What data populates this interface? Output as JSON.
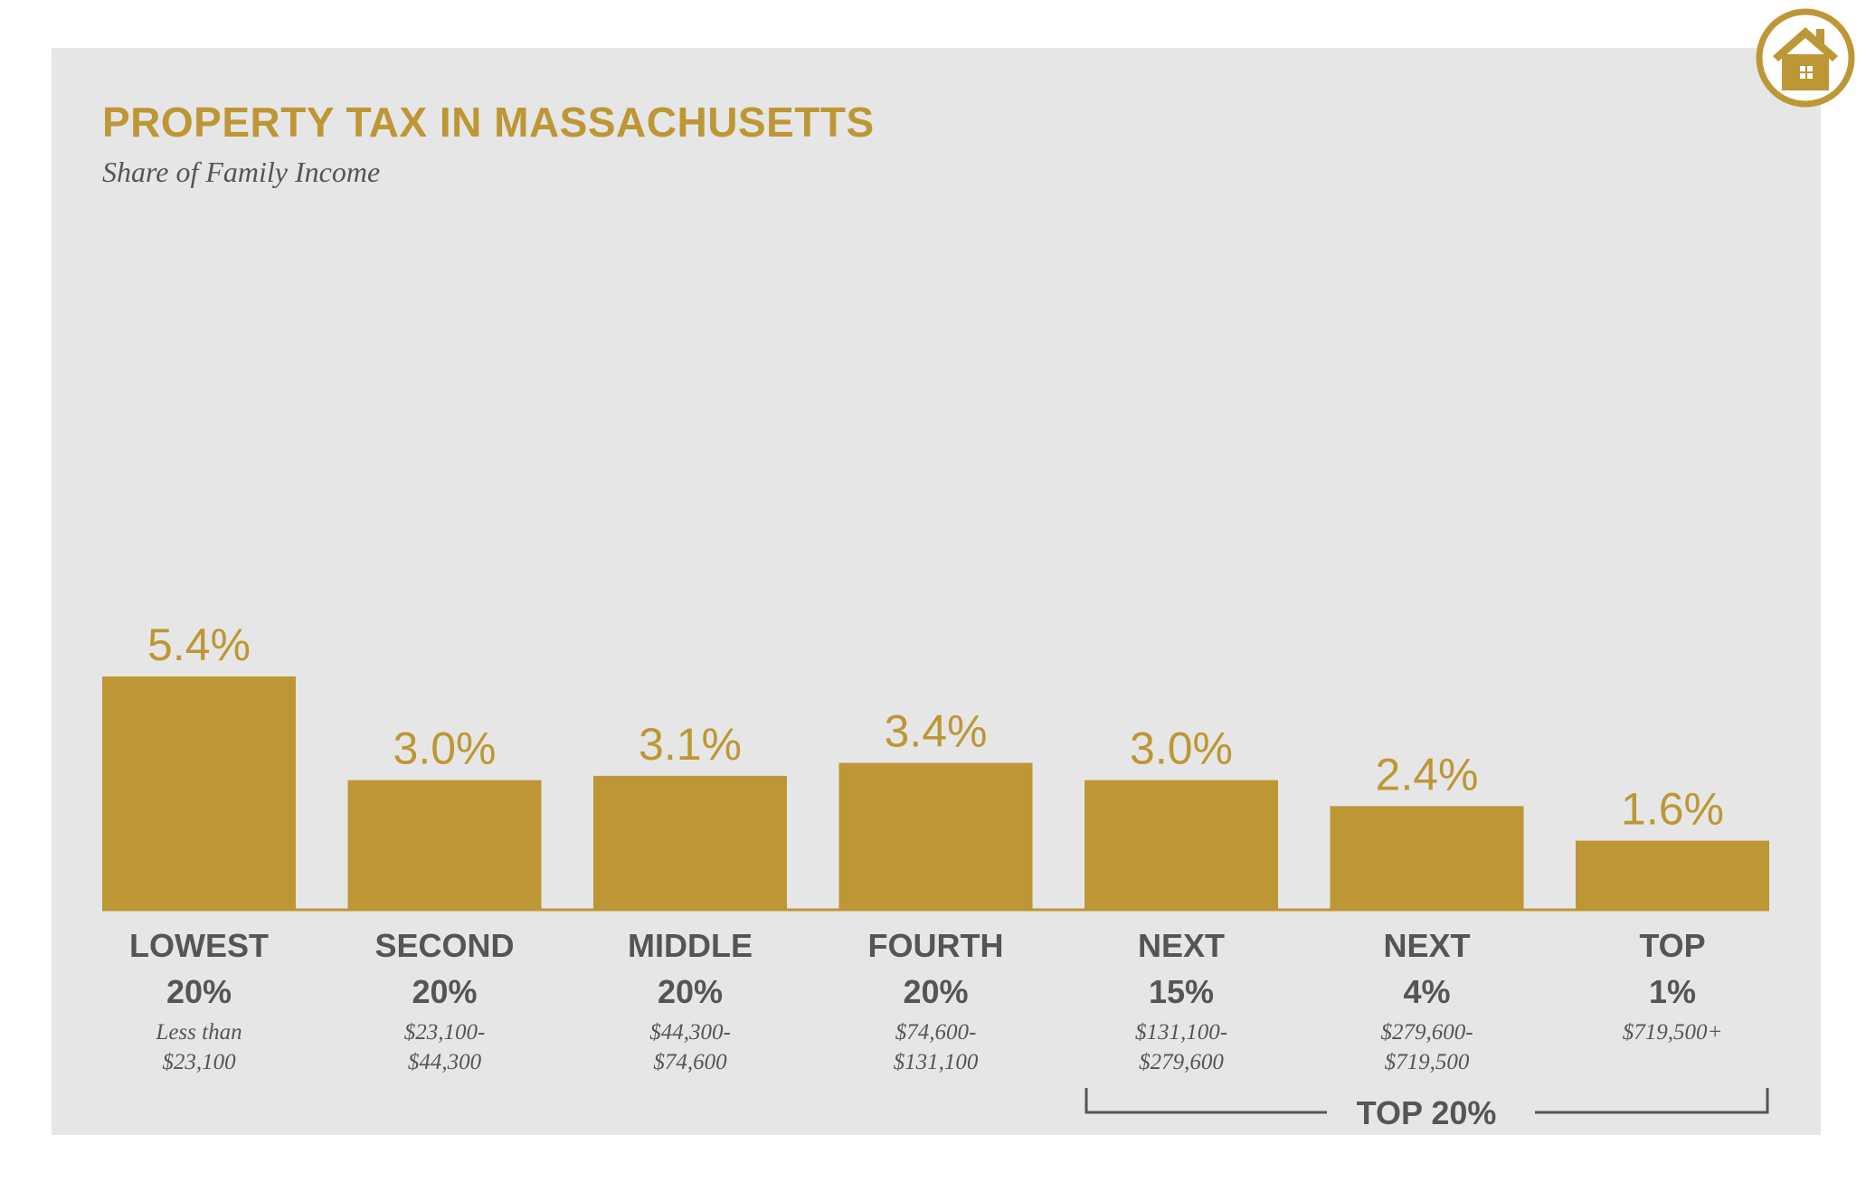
{
  "chart_data": {
    "type": "bar",
    "title": "PROPERTY TAX IN MASSACHUSETTS",
    "subtitle": "Share of Family Income",
    "categories": [
      {
        "group": "LOWEST",
        "share": "20%",
        "range": [
          "Less than",
          "$23,100"
        ]
      },
      {
        "group": "SECOND",
        "share": "20%",
        "range": [
          "$23,100-",
          "$44,300"
        ]
      },
      {
        "group": "MIDDLE",
        "share": "20%",
        "range": [
          "$44,300-",
          "$74,600"
        ]
      },
      {
        "group": "FOURTH",
        "share": "20%",
        "range": [
          "$74,600-",
          "$131,100"
        ]
      },
      {
        "group": "NEXT",
        "share": "15%",
        "range": [
          "$131,100-",
          "$279,600"
        ]
      },
      {
        "group": "NEXT",
        "share": "4%",
        "range": [
          "$279,600-",
          "$719,500"
        ]
      },
      {
        "group": "TOP",
        "share": "1%",
        "range": [
          "$719,500+"
        ]
      }
    ],
    "values": [
      5.4,
      3.0,
      3.1,
      3.4,
      3.0,
      2.4,
      1.6
    ],
    "value_labels": [
      "5.4%",
      "3.0%",
      "3.1%",
      "3.4%",
      "3.0%",
      "2.4%",
      "1.6%"
    ],
    "ylim": [
      0,
      5.4
    ],
    "grid": false,
    "legend": "none",
    "bracket": {
      "label": "TOP 20%",
      "from_index": 4,
      "to_index": 6
    },
    "colors": {
      "bar": "#bd9735",
      "text_dark": "#555555",
      "bracket": "#555555",
      "panel": "#e6e6e6"
    }
  },
  "icon": {
    "name": "house-icon",
    "color": "#bd9735"
  }
}
